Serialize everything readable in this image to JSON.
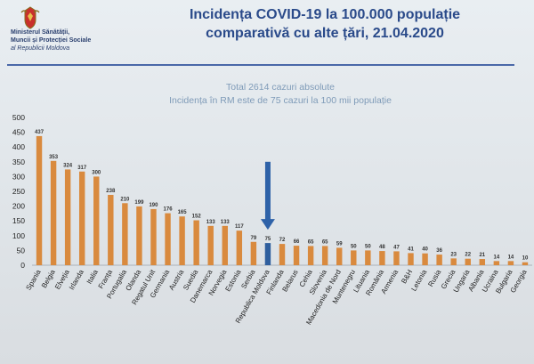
{
  "header": {
    "ministry_line1": "Ministerul Sănătății,",
    "ministry_line2": "Muncii și Protecției Sociale",
    "ministry_line3": "al Republicii Moldova",
    "title_line1": "Incidența COVID-19 la 100.000 populație",
    "title_line2": "comparativă cu alte țări, 21.04.2020"
  },
  "subtitle_line1": "Total 2614 cazuri absolute",
  "subtitle_line2": "Incidența în RM este de 75 cazuri la 100 mii populație",
  "colors": {
    "bar": "#d98a3e",
    "highlight": "#2f5f9e",
    "arrow": "#2e62a8",
    "title": "#2a4a8a"
  },
  "chart_data": {
    "type": "bar",
    "categories": [
      "Spania",
      "Belgia",
      "Elveția",
      "Irlanda",
      "Italia",
      "Franța",
      "Portugalia",
      "Olanda",
      "Regatul Unit",
      "Germania",
      "Austria",
      "Suedia",
      "Danemarca",
      "Norvegia",
      "Estonia",
      "Serbia",
      "Republica Moldova",
      "Finlanda",
      "Belarus",
      "Cehia",
      "Slovenia",
      "Macedonia de Nord",
      "Muntenegru",
      "Lituania",
      "România",
      "Armenia",
      "B&H",
      "Letonia",
      "Rusia",
      "Grecia",
      "Ungaria",
      "Albania",
      "Ucraina",
      "Bulgaria",
      "Georgia"
    ],
    "values": [
      437,
      353,
      324,
      317,
      300,
      238,
      210,
      199,
      190,
      176,
      165,
      152,
      133,
      133,
      117,
      79,
      75,
      72,
      66,
      65,
      65,
      59,
      50,
      50,
      48,
      47,
      41,
      40,
      36,
      23,
      22,
      21,
      14,
      14,
      10
    ],
    "value_labels": [
      "437",
      "353",
      "324",
      "317",
      "300",
      "238",
      "210",
      "199",
      "190",
      "176",
      "165",
      "152",
      "133",
      "133",
      "117",
      "79",
      "75",
      "72",
      "66",
      "65",
      "65",
      "59",
      "50",
      "50",
      "48",
      "47",
      "41",
      "40",
      "36",
      "23",
      "22",
      "21",
      "14",
      "14",
      "10"
    ],
    "highlight_category": "Republica Moldova",
    "yticks": [
      "0",
      "50",
      "100",
      "150",
      "200",
      "250",
      "300",
      "350",
      "400",
      "450",
      "500"
    ],
    "ylim": [
      0,
      500
    ],
    "grid": false,
    "legend": "none"
  }
}
